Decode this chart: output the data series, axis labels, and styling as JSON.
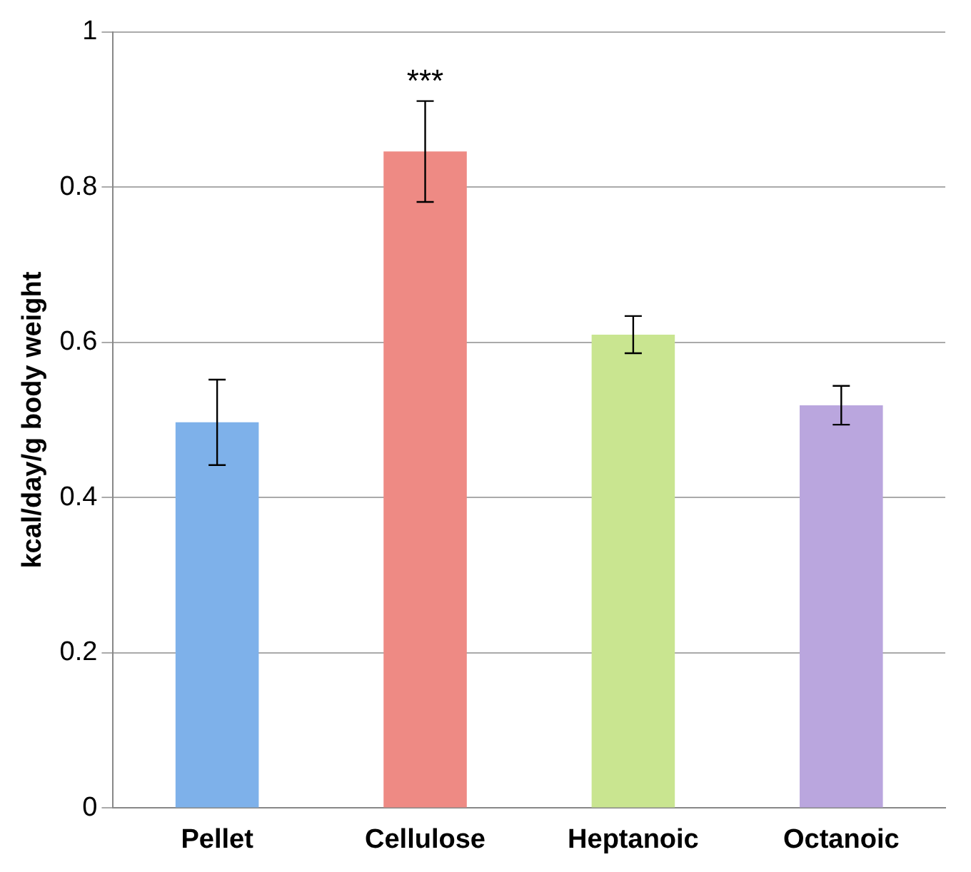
{
  "chart_data": {
    "type": "bar",
    "ylabel": "kcal/day/g body weight",
    "categories": [
      "Pellet",
      "Cellulose",
      "Heptanoic",
      "Octanoic"
    ],
    "values": [
      0.497,
      0.846,
      0.61,
      0.519
    ],
    "colors": [
      "#7eb1ea",
      "#ee8a84",
      "#c9e590",
      "#baa6de"
    ],
    "errors": [
      0.055,
      0.065,
      0.024,
      0.025
    ],
    "ylim": [
      0,
      1
    ],
    "yticks": [
      0,
      0.2,
      0.4,
      0.6,
      0.8,
      1
    ],
    "grid": "y",
    "legend": false,
    "annotations": [
      {
        "text": "***",
        "x": "Cellulose",
        "y": 0.911
      }
    ]
  }
}
